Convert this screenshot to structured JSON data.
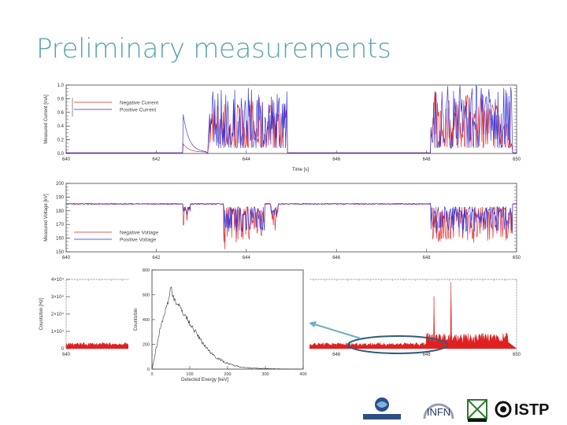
{
  "slide": {
    "title": "Preliminary measurements"
  },
  "colors": {
    "negative": "#e02020",
    "positive": "#2a2ad8",
    "title": "#5aa3b0",
    "arrow": "#6fb0c2",
    "ellipse": "#2f5d7a"
  },
  "chart_data": [
    {
      "type": "line",
      "ylabel": "Measured Current [mA]",
      "xlabel": "Time [s]",
      "xlim": [
        640,
        650
      ],
      "ylim": [
        0.0,
        1.0
      ],
      "x_ticks": [
        "640",
        "642",
        "644",
        "646",
        "648",
        "650"
      ],
      "y_ticks": [
        "0.0",
        "0.2",
        "0.4",
        "0.6",
        "0.8",
        "1.0"
      ],
      "legend_placement": "top-left",
      "series": [
        {
          "name": "Negative Current",
          "color": "#e02020",
          "baseline": 0.01,
          "bursts": [
            [
              642.6,
              643.1,
              0.12
            ],
            [
              643.15,
              644.9,
              0.75
            ],
            [
              648.1,
              649.9,
              0.85
            ]
          ]
        },
        {
          "name": "Positive Current",
          "color": "#2a2ad8",
          "baseline": 0.01,
          "bursts": [
            [
              642.6,
              643.1,
              0.55
            ],
            [
              643.15,
              644.9,
              0.88
            ],
            [
              648.1,
              649.9,
              0.98
            ]
          ]
        }
      ]
    },
    {
      "type": "line",
      "ylabel": "Measured Voltage [kV]",
      "xlabel": "",
      "xlim": [
        640,
        650
      ],
      "ylim": [
        150,
        200
      ],
      "x_ticks": [
        "640",
        "642",
        "644",
        "646",
        "648",
        "650"
      ],
      "y_ticks": [
        "150",
        "160",
        "170",
        "180",
        "190",
        "200"
      ],
      "legend_placement": "bottom-left",
      "series": [
        {
          "name": "Negative Voltage",
          "color": "#e02020",
          "level": 185,
          "dips": [
            [
              642.6,
              642.75,
              172
            ],
            [
              643.5,
              644.4,
              158
            ],
            [
              644.55,
              644.7,
              170
            ],
            [
              648.1,
              649.9,
              158
            ]
          ]
        },
        {
          "name": "Positive Voltage",
          "color": "#2a2ad8",
          "level": 185,
          "dips": [
            [
              642.6,
              642.75,
              178
            ],
            [
              643.5,
              644.4,
              165
            ],
            [
              644.55,
              644.7,
              176
            ],
            [
              648.1,
              649.9,
              165
            ]
          ]
        }
      ]
    },
    {
      "type": "area",
      "ylabel": "Counts/bin [Hz]",
      "xlabel": "",
      "xlim": [
        640,
        650
      ],
      "ylim": [
        0,
        40000
      ],
      "x_ticks": [
        "640",
        "646",
        "648",
        "650"
      ],
      "y_ticks": [
        "0",
        "1×10⁴",
        "2×10⁴",
        "3×10⁴",
        "4×10⁴"
      ],
      "series": [
        {
          "name": "",
          "color": "#e02020",
          "baseline": 2500,
          "spike_region": [
            648.0,
            649.8
          ],
          "spike_max": 40000
        }
      ]
    },
    {
      "type": "line",
      "ylabel": "Counts/bin",
      "xlabel": "Detected Energy [keV]",
      "xlim": [
        0,
        400
      ],
      "ylim": [
        0,
        800
      ],
      "x_ticks": [
        "0",
        "100",
        "200",
        "300",
        "400"
      ],
      "y_ticks": [
        "0",
        "200",
        "400",
        "600",
        "800"
      ],
      "series": [
        {
          "name": "",
          "color": "#333333",
          "x": [
            0,
            8,
            15,
            22,
            30,
            38,
            45,
            50,
            55,
            60,
            70,
            80,
            90,
            100,
            115,
            130,
            150,
            170,
            190,
            210,
            230,
            250,
            280,
            320,
            360,
            400
          ],
          "y": [
            0,
            120,
            230,
            330,
            420,
            500,
            560,
            680,
            600,
            560,
            510,
            470,
            420,
            370,
            300,
            230,
            150,
            95,
            60,
            35,
            20,
            12,
            6,
            3,
            1,
            0
          ]
        }
      ]
    }
  ],
  "logos": {
    "consorzio": "CONSORZIO RFX",
    "infn": "INFN",
    "istp": "ISTP"
  }
}
